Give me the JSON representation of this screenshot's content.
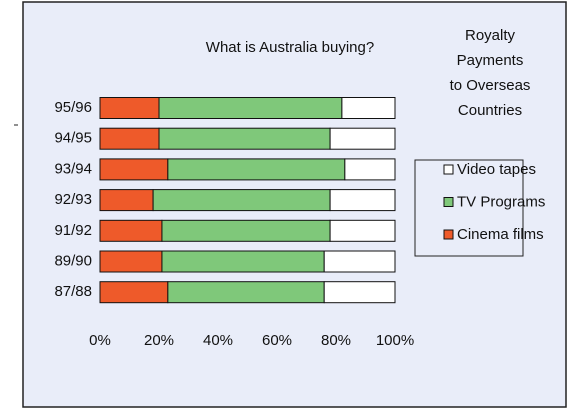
{
  "chart_data": {
    "type": "stacked_bar_horizontal",
    "title": "What is Australia buying?",
    "annotation_lines": [
      "Royalty",
      "Payments",
      "to Overseas",
      "Countries"
    ],
    "categories": [
      "95/96",
      "94/95",
      "93/94",
      "92/93",
      "91/92",
      "89/90",
      "87/88"
    ],
    "series": [
      {
        "name": "Cinema films",
        "color": "#ee5a2a",
        "values": [
          20,
          20,
          23,
          18,
          21,
          21,
          23
        ]
      },
      {
        "name": "TV Programs",
        "color": "#7fc87a",
        "values": [
          62,
          58,
          60,
          60,
          57,
          55,
          53
        ]
      },
      {
        "name": "Video tapes",
        "color": "#ffffff",
        "values": [
          18,
          22,
          17,
          22,
          22,
          24,
          24
        ]
      }
    ],
    "xlim": [
      0,
      100
    ],
    "xticks": [
      {
        "value": 0,
        "label": "0%"
      },
      {
        "value": 20,
        "label": "20%"
      },
      {
        "value": 40,
        "label": "40%"
      },
      {
        "value": 60,
        "label": "60%"
      },
      {
        "value": 80,
        "label": "80%"
      },
      {
        "value": 100,
        "label": "100%"
      }
    ],
    "legend": "right"
  }
}
